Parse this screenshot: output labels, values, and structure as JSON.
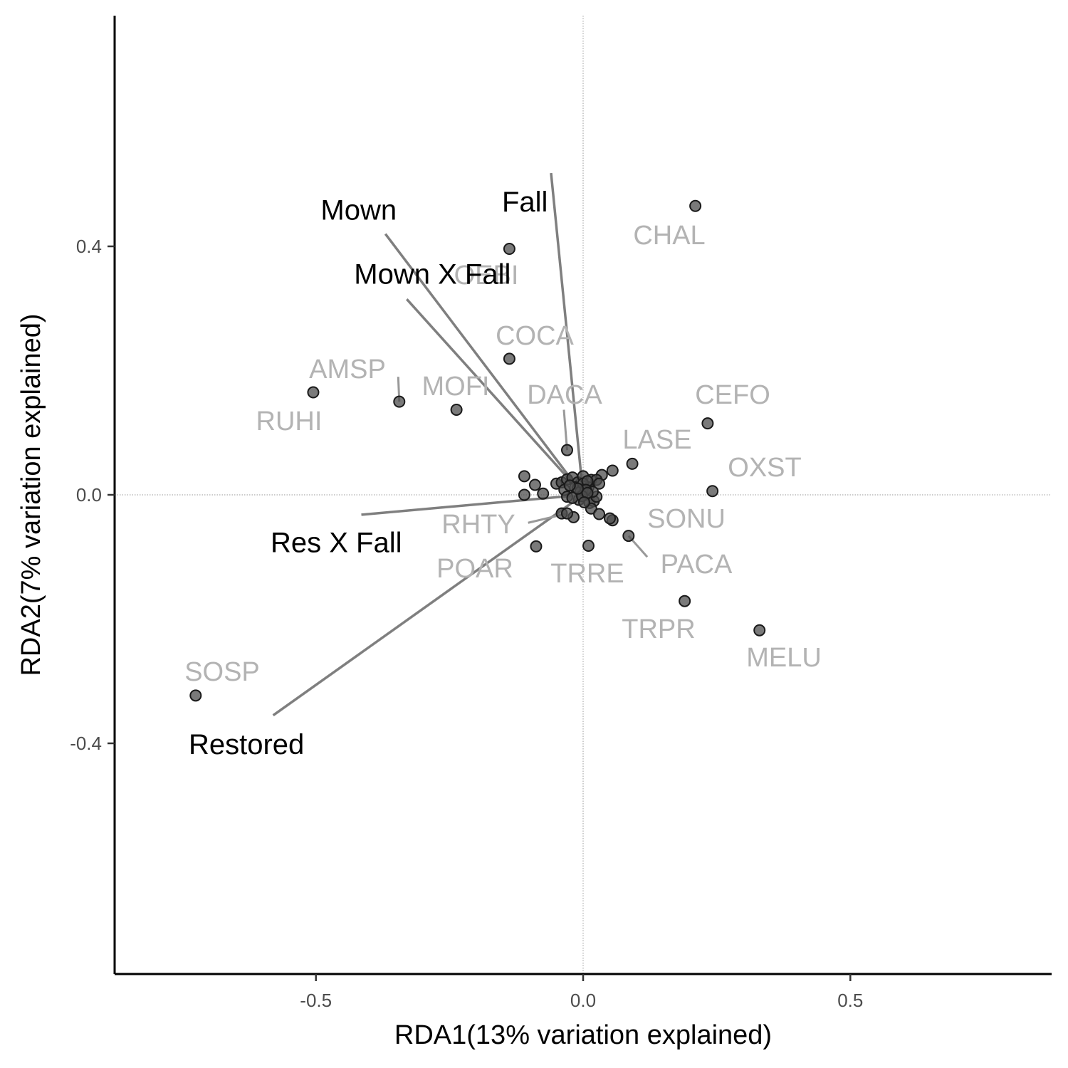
{
  "chart_data": {
    "type": "scatter",
    "title": "",
    "xlabel": "RDA1(13% variation explained)",
    "ylabel": "RDA2(7% variation explained)",
    "xlim": [
      -0.88,
      0.88
    ],
    "ylim": [
      -0.77,
      0.77
    ],
    "x_ticks": [
      -0.5,
      0.0,
      0.5
    ],
    "x_tick_labels": [
      "-0.5",
      "0.0",
      "0.5"
    ],
    "y_ticks": [
      -0.4,
      0.0,
      0.4
    ],
    "y_tick_labels": [
      "-0.4",
      "0.0",
      "0.4"
    ],
    "grid": false,
    "reference_lines": {
      "x": 0,
      "y": 0
    },
    "point_color": "#4d4d4d",
    "arrow_color": "#7f7f7f",
    "species_label_color": "#b3b3b3",
    "labeled_species": [
      {
        "label": "CHAL",
        "x": 0.21,
        "y": 0.465
      },
      {
        "label": "OEBI",
        "x": -0.138,
        "y": 0.396
      },
      {
        "label": "COCA",
        "x": -0.138,
        "y": 0.219
      },
      {
        "label": "AMSP",
        "x": -0.344,
        "y": 0.15
      },
      {
        "label": "RUHI",
        "x": -0.505,
        "y": 0.165
      },
      {
        "label": "MOFI",
        "x": -0.237,
        "y": 0.137
      },
      {
        "label": "DACA",
        "x": -0.03,
        "y": 0.072
      },
      {
        "label": "CEFO",
        "x": 0.233,
        "y": 0.115
      },
      {
        "label": "LASE",
        "x": 0.092,
        "y": 0.05
      },
      {
        "label": "OXST",
        "x": 0.242,
        "y": 0.006
      },
      {
        "label": "SONU",
        "x": 0.05,
        "y": -0.038
      },
      {
        "label": "RHTY",
        "x": -0.03,
        "y": -0.03
      },
      {
        "label": "PACA",
        "x": 0.085,
        "y": -0.066
      },
      {
        "label": "POAR",
        "x": -0.088,
        "y": -0.083
      },
      {
        "label": "TRRE",
        "x": 0.01,
        "y": -0.082
      },
      {
        "label": "TRPR",
        "x": 0.19,
        "y": -0.171
      },
      {
        "label": "MELU",
        "x": 0.33,
        "y": -0.218
      },
      {
        "label": "SOSP",
        "x": -0.725,
        "y": -0.323
      }
    ],
    "other_species": [
      {
        "x": -0.11,
        "y": 0.03
      },
      {
        "x": -0.09,
        "y": 0.016
      },
      {
        "x": -0.11,
        "y": 0.0
      },
      {
        "x": -0.075,
        "y": 0.002
      },
      {
        "x": -0.05,
        "y": 0.018
      },
      {
        "x": -0.04,
        "y": 0.02
      },
      {
        "x": -0.03,
        "y": 0.025
      },
      {
        "x": -0.02,
        "y": 0.028
      },
      {
        "x": -0.01,
        "y": 0.02
      },
      {
        "x": 0.0,
        "y": 0.03
      },
      {
        "x": 0.015,
        "y": 0.024
      },
      {
        "x": 0.035,
        "y": 0.032
      },
      {
        "x": 0.055,
        "y": 0.039
      },
      {
        "x": 0.025,
        "y": 0.024
      },
      {
        "x": -0.035,
        "y": 0.008
      },
      {
        "x": -0.03,
        "y": -0.003
      },
      {
        "x": -0.015,
        "y": 0.012
      },
      {
        "x": -0.005,
        "y": 0.005
      },
      {
        "x": 0.005,
        "y": 0.0
      },
      {
        "x": 0.01,
        "y": 0.012
      },
      {
        "x": 0.0,
        "y": 0.018
      },
      {
        "x": -0.008,
        "y": -0.008
      },
      {
        "x": 0.012,
        "y": -0.013
      },
      {
        "x": 0.02,
        "y": -0.01
      },
      {
        "x": 0.025,
        "y": -0.003
      },
      {
        "x": 0.018,
        "y": 0.005
      },
      {
        "x": -0.02,
        "y": -0.005
      },
      {
        "x": 0.008,
        "y": 0.022
      },
      {
        "x": 0.015,
        "y": -0.022
      },
      {
        "x": -0.04,
        "y": -0.03
      },
      {
        "x": -0.018,
        "y": -0.036
      },
      {
        "x": 0.03,
        "y": -0.031
      },
      {
        "x": 0.055,
        "y": -0.041
      },
      {
        "x": 0.005,
        "y": 0.008
      },
      {
        "x": -0.002,
        "y": -0.002
      },
      {
        "x": 0.008,
        "y": 0.003
      },
      {
        "x": -0.01,
        "y": 0.01
      },
      {
        "x": 0.002,
        "y": -0.012
      },
      {
        "x": -0.025,
        "y": 0.015
      },
      {
        "x": 0.03,
        "y": 0.018
      }
    ],
    "species_leader_lines": [
      {
        "label": "AMSP",
        "x1": -0.344,
        "y1": 0.15,
        "x2": -0.346,
        "y2": 0.19
      },
      {
        "label": "DACA",
        "x1": -0.03,
        "y1": 0.072,
        "x2": -0.036,
        "y2": 0.137
      },
      {
        "label": "RHTY",
        "x1": -0.03,
        "y1": -0.03,
        "x2": -0.103,
        "y2": -0.045
      },
      {
        "label": "PACA",
        "x1": 0.085,
        "y1": -0.066,
        "x2": 0.12,
        "y2": -0.1
      }
    ],
    "biplot_arrows": [
      {
        "name": "Fall",
        "x": -0.06,
        "y": 0.518,
        "label_x": -0.109,
        "label_y": 0.472
      },
      {
        "name": "Mown",
        "x": -0.37,
        "y": 0.42,
        "label_x": -0.42,
        "label_y": 0.459
      },
      {
        "name": "Mown X Fall",
        "x": -0.33,
        "y": 0.315,
        "label_x": -0.282,
        "label_y": 0.356
      },
      {
        "name": "Res X Fall",
        "x": -0.415,
        "y": -0.032,
        "label_x": -0.462,
        "label_y": -0.076
      },
      {
        "name": "Restored",
        "x": -0.58,
        "y": -0.355,
        "label_x": -0.63,
        "label_y": -0.401
      }
    ]
  }
}
